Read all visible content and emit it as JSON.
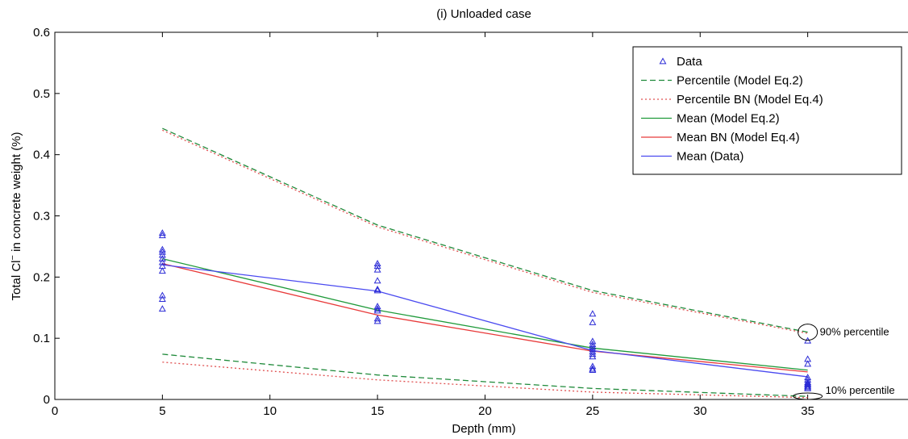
{
  "chart_data": {
    "type": "scatter",
    "title": "(i) Unloaded case",
    "xlabel": "Depth (mm)",
    "ylabel_main": "Total Cl",
    "ylabel_sup": "−",
    "ylabel_rest": " in concrete weight (%)",
    "xlim": [
      0,
      40
    ],
    "ylim": [
      0,
      0.6
    ],
    "x_ticks": [
      0,
      5,
      10,
      15,
      20,
      25,
      30,
      35,
      40
    ],
    "y_ticks": [
      0,
      0.1,
      0.2,
      0.3,
      0.4,
      0.5,
      0.6
    ],
    "x_tick_labels": [
      "0",
      "5",
      "10",
      "15",
      "20",
      "25",
      "30",
      "35",
      "40"
    ],
    "y_tick_labels": [
      "0",
      "0.1",
      "0.2",
      "0.3",
      "0.4",
      "0.5",
      "0.6"
    ],
    "grid": false,
    "legend_position": "top-right",
    "series": [
      {
        "name": "Data",
        "kind": "scatter",
        "marker": "triangle",
        "color": "#2b2bd6",
        "points": [
          [
            5,
            0.272
          ],
          [
            5,
            0.268
          ],
          [
            5,
            0.245
          ],
          [
            5,
            0.241
          ],
          [
            5,
            0.236
          ],
          [
            5,
            0.23
          ],
          [
            5,
            0.224
          ],
          [
            5,
            0.218
          ],
          [
            5,
            0.21
          ],
          [
            5,
            0.17
          ],
          [
            5,
            0.164
          ],
          [
            5,
            0.148
          ],
          [
            15,
            0.222
          ],
          [
            15,
            0.218
          ],
          [
            15,
            0.212
          ],
          [
            15,
            0.194
          ],
          [
            15,
            0.18
          ],
          [
            15,
            0.178
          ],
          [
            15,
            0.152
          ],
          [
            15,
            0.148
          ],
          [
            15,
            0.145
          ],
          [
            15,
            0.132
          ],
          [
            15,
            0.128
          ],
          [
            25,
            0.14
          ],
          [
            25,
            0.126
          ],
          [
            25,
            0.095
          ],
          [
            25,
            0.09
          ],
          [
            25,
            0.086
          ],
          [
            25,
            0.082
          ],
          [
            25,
            0.078
          ],
          [
            25,
            0.074
          ],
          [
            25,
            0.07
          ],
          [
            25,
            0.054
          ],
          [
            25,
            0.05
          ],
          [
            25,
            0.048
          ],
          [
            35,
            0.096
          ],
          [
            35,
            0.066
          ],
          [
            35,
            0.058
          ],
          [
            35,
            0.036
          ],
          [
            35,
            0.032
          ],
          [
            35,
            0.028
          ],
          [
            35,
            0.026
          ],
          [
            35,
            0.024
          ],
          [
            35,
            0.022
          ],
          [
            35,
            0.02
          ],
          [
            35,
            0.018
          ]
        ]
      },
      {
        "name": "Percentile (Model Eq.2)",
        "kind": "line",
        "style": "dashed",
        "color": "#1f8a3a",
        "x": [
          5,
          15,
          25,
          35
        ],
        "upper": [
          0.443,
          0.285,
          0.178,
          0.11
        ],
        "lower": [
          0.074,
          0.04,
          0.018,
          0.005
        ]
      },
      {
        "name": "Percentile BN (Model Eq.4)",
        "kind": "line",
        "style": "dotted",
        "color": "#e05050",
        "x": [
          5,
          15,
          25,
          35
        ],
        "upper": [
          0.44,
          0.282,
          0.175,
          0.108
        ],
        "lower": [
          0.061,
          0.032,
          0.012,
          0.003
        ]
      },
      {
        "name": "Mean (Model Eq.2)",
        "kind": "line",
        "style": "solid",
        "color": "#1f9a3a",
        "x": [
          5,
          15,
          25,
          35
        ],
        "y": [
          0.23,
          0.146,
          0.084,
          0.048
        ]
      },
      {
        "name": "Mean BN (Model Eq.4)",
        "kind": "line",
        "style": "solid",
        "color": "#e83a3a",
        "x": [
          5,
          15,
          25,
          35
        ],
        "y": [
          0.222,
          0.138,
          0.079,
          0.045
        ]
      },
      {
        "name": "Mean (Data)",
        "kind": "line",
        "style": "solid",
        "color": "#4a4af0",
        "x": [
          5,
          15,
          25,
          35
        ],
        "y": [
          0.22,
          0.177,
          0.08,
          0.037
        ]
      }
    ],
    "annotations": [
      {
        "text": "90% percentile",
        "x": 35,
        "y": 0.11
      },
      {
        "text": "10% percentile",
        "x": 35,
        "y": 0.004
      }
    ]
  }
}
